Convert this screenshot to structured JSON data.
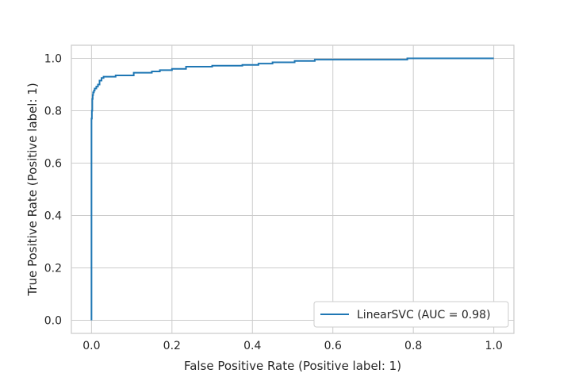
{
  "chart_data": {
    "type": "line",
    "title": "",
    "xlabel": "False Positive Rate (Positive label: 1)",
    "ylabel": "True Positive Rate (Positive label: 1)",
    "xlim": [
      -0.05,
      1.05
    ],
    "ylim": [
      -0.05,
      1.05
    ],
    "xticks": [
      0.0,
      0.2,
      0.4,
      0.6,
      0.8,
      1.0
    ],
    "xtick_labels": [
      "0.0",
      "0.2",
      "0.4",
      "0.6",
      "0.8",
      "1.0"
    ],
    "yticks": [
      0.0,
      0.2,
      0.4,
      0.6,
      0.8,
      1.0
    ],
    "ytick_labels": [
      "0.0",
      "0.2",
      "0.4",
      "0.6",
      "0.8",
      "1.0"
    ],
    "grid": true,
    "legend_position": "lower-right",
    "series": [
      {
        "name": "LinearSVC (AUC = 0.98)",
        "color": "#1f77b4",
        "x": [
          0.0,
          0.0,
          0.001,
          0.001,
          0.002,
          0.002,
          0.003,
          0.003,
          0.004,
          0.004,
          0.006,
          0.006,
          0.008,
          0.008,
          0.012,
          0.012,
          0.016,
          0.016,
          0.02,
          0.02,
          0.025,
          0.025,
          0.03,
          0.03,
          0.06,
          0.06,
          0.105,
          0.105,
          0.15,
          0.15,
          0.17,
          0.17,
          0.2,
          0.2,
          0.235,
          0.235,
          0.3,
          0.3,
          0.375,
          0.375,
          0.415,
          0.415,
          0.45,
          0.45,
          0.505,
          0.505,
          0.555,
          0.555,
          0.785,
          0.785,
          1.0
        ],
        "y": [
          0.0,
          0.77,
          0.77,
          0.8,
          0.8,
          0.845,
          0.845,
          0.86,
          0.86,
          0.87,
          0.87,
          0.877,
          0.877,
          0.885,
          0.885,
          0.892,
          0.892,
          0.9,
          0.9,
          0.915,
          0.915,
          0.925,
          0.925,
          0.93,
          0.93,
          0.935,
          0.935,
          0.945,
          0.945,
          0.95,
          0.95,
          0.955,
          0.955,
          0.96,
          0.96,
          0.968,
          0.968,
          0.972,
          0.972,
          0.975,
          0.975,
          0.98,
          0.98,
          0.985,
          0.985,
          0.99,
          0.99,
          0.995,
          0.995,
          1.0,
          1.0
        ]
      }
    ]
  }
}
